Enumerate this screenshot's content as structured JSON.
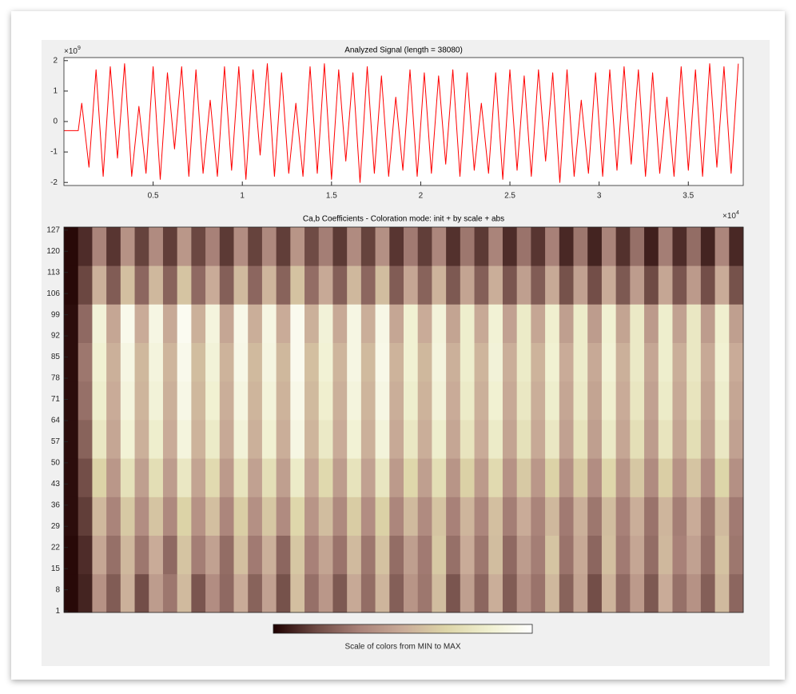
{
  "chart_data": [
    {
      "type": "line",
      "title": "Analyzed Signal (length = 38080)",
      "y_exponent": {
        "base": "×10",
        "power": "9"
      },
      "x_exponent": {
        "base": "×10",
        "power": "4"
      },
      "color": "#ff0000",
      "x": [
        0,
        0.08,
        0.1,
        0.14,
        0.18,
        0.22,
        0.26,
        0.3,
        0.34,
        0.38,
        0.42,
        0.46,
        0.5,
        0.54,
        0.58,
        0.62,
        0.66,
        0.7,
        0.74,
        0.78,
        0.82,
        0.86,
        0.9,
        0.94,
        0.98,
        1.02,
        1.06,
        1.1,
        1.14,
        1.18,
        1.22,
        1.26,
        1.3,
        1.34,
        1.38,
        1.42,
        1.46,
        1.5,
        1.54,
        1.58,
        1.62,
        1.66,
        1.7,
        1.74,
        1.78,
        1.82,
        1.86,
        1.9,
        1.94,
        1.98,
        2.02,
        2.06,
        2.1,
        2.14,
        2.18,
        2.22,
        2.26,
        2.3,
        2.34,
        2.38,
        2.42,
        2.46,
        2.5,
        2.54,
        2.58,
        2.62,
        2.66,
        2.7,
        2.74,
        2.78,
        2.82,
        2.86,
        2.9,
        2.94,
        2.98,
        3.02,
        3.06,
        3.1,
        3.14,
        3.18,
        3.22,
        3.26,
        3.3,
        3.34,
        3.38,
        3.42,
        3.46,
        3.5,
        3.54,
        3.58,
        3.62,
        3.66,
        3.7,
        3.74,
        3.78
      ],
      "values": [
        -0.3,
        -0.3,
        0.6,
        -1.5,
        1.7,
        -1.8,
        1.8,
        -1.2,
        1.9,
        -1.8,
        0.5,
        -1.7,
        1.8,
        -1.9,
        1.6,
        -0.9,
        1.8,
        -1.8,
        1.7,
        -1.7,
        0.7,
        -1.8,
        1.8,
        -1.6,
        1.8,
        -1.9,
        1.7,
        -1.1,
        1.9,
        -1.8,
        1.6,
        -1.7,
        0.6,
        -1.8,
        1.8,
        -1.7,
        1.9,
        -1.9,
        1.7,
        -1.3,
        1.6,
        -2.0,
        1.8,
        -1.7,
        1.5,
        -1.8,
        0.8,
        -1.6,
        1.7,
        -1.8,
        1.6,
        -1.7,
        1.5,
        -1.4,
        1.7,
        -1.8,
        1.6,
        -1.6,
        0.6,
        -1.7,
        1.6,
        -1.9,
        1.7,
        -1.6,
        1.5,
        -1.8,
        1.7,
        -1.3,
        1.6,
        -2.0,
        1.7,
        -1.8,
        0.7,
        -1.7,
        1.6,
        -1.8,
        1.7,
        -1.6,
        1.8,
        -1.4,
        1.7,
        -1.8,
        1.6,
        -1.7,
        0.8,
        -1.8,
        1.8,
        -1.6,
        1.7,
        -1.8,
        1.9,
        -1.5,
        1.8,
        -1.7,
        1.9
      ],
      "xlim": [
        0,
        3.808
      ],
      "xticks": [
        0.5,
        1,
        1.5,
        2,
        2.5,
        3,
        3.5
      ],
      "ylim": [
        -2.1,
        2.1
      ],
      "yticks": [
        -2,
        -1,
        0,
        1,
        2
      ]
    },
    {
      "type": "heatmap",
      "title": "Ca,b Coefficients - Coloration mode: init + by scale + abs",
      "colorbar_label": "Scale of colors from MIN to MAX",
      "colormap": [
        "#1e0000",
        "#6e4a44",
        "#a98279",
        "#c9ab98",
        "#ddd5a8",
        "#f0f0d0",
        "#ffffff"
      ],
      "zlim": [
        0,
        100
      ],
      "xlim": [
        0,
        3.808
      ],
      "ylim": [
        0.5,
        128
      ],
      "yticks": [
        1,
        8,
        15,
        22,
        29,
        36,
        43,
        50,
        57,
        64,
        71,
        78,
        85,
        92,
        99,
        106,
        113,
        120,
        127
      ],
      "z": [
        [
          2,
          8,
          40,
          22,
          52,
          18,
          44,
          30,
          56,
          20,
          38,
          26,
          50,
          24,
          46,
          19,
          58,
          28,
          42,
          21,
          49,
          27,
          54,
          23,
          41,
          30,
          57,
          20,
          45,
          25,
          51,
          22,
          39,
          29,
          55,
          24,
          47,
          18,
          53,
          26,
          43,
          21,
          50,
          28,
          40,
          23,
          56,
          25
        ],
        [
          2,
          10,
          48,
          28,
          55,
          30,
          50,
          26,
          60,
          32,
          46,
          27,
          58,
          31,
          52,
          25,
          61,
          33,
          47,
          29,
          56,
          30,
          59,
          27,
          45,
          31,
          62,
          28,
          50,
          30,
          57,
          26,
          44,
          32,
          60,
          29,
          49,
          25,
          58,
          31,
          48,
          27,
          55,
          33,
          46,
          28,
          59,
          30
        ],
        [
          3,
          14,
          55,
          34,
          62,
          38,
          60,
          36,
          66,
          40,
          58,
          35,
          64,
          39,
          61,
          37,
          68,
          41,
          57,
          36,
          63,
          38,
          65,
          35,
          56,
          37,
          60,
          33,
          54,
          35,
          58,
          32,
          50,
          34,
          55,
          31,
          52,
          30,
          57,
          33,
          51,
          29,
          54,
          32,
          50,
          30,
          56,
          31
        ],
        [
          3,
          18,
          66,
          42,
          74,
          45,
          72,
          44,
          78,
          47,
          70,
          43,
          76,
          46,
          73,
          45,
          80,
          48,
          69,
          44,
          75,
          46,
          77,
          43,
          68,
          45,
          72,
          41,
          65,
          43,
          70,
          40,
          62,
          42,
          66,
          39,
          63,
          38,
          68,
          41,
          61,
          37,
          64,
          40,
          60,
          38,
          67,
          39
        ],
        [
          3,
          24,
          78,
          48,
          85,
          52,
          82,
          50,
          88,
          53,
          80,
          49,
          86,
          52,
          84,
          51,
          90,
          54,
          79,
          50,
          85,
          52,
          87,
          49,
          78,
          51,
          82,
          48,
          76,
          50,
          80,
          47,
          74,
          49,
          78,
          46,
          75,
          45,
          79,
          48,
          73,
          44,
          76,
          47,
          72,
          45,
          78,
          46
        ],
        [
          3,
          28,
          82,
          50,
          88,
          54,
          86,
          52,
          91,
          55,
          84,
          51,
          89,
          54,
          87,
          53,
          92,
          56,
          83,
          52,
          88,
          54,
          90,
          51,
          82,
          53,
          86,
          50,
          80,
          52,
          84,
          49,
          78,
          51,
          82,
          48,
          79,
          47,
          83,
          50,
          77,
          46,
          80,
          49,
          76,
          47,
          82,
          48
        ],
        [
          3,
          30,
          84,
          52,
          90,
          55,
          88,
          54,
          93,
          57,
          86,
          53,
          91,
          56,
          89,
          55,
          94,
          58,
          85,
          54,
          90,
          56,
          92,
          53,
          84,
          55,
          88,
          52,
          82,
          54,
          86,
          51,
          80,
          53,
          84,
          50,
          81,
          49,
          85,
          52,
          79,
          48,
          82,
          51,
          78,
          49,
          84,
          50
        ],
        [
          3,
          26,
          86,
          48,
          93,
          50,
          90,
          49,
          95,
          52,
          88,
          48,
          92,
          51,
          90,
          50,
          94,
          52,
          86,
          49,
          90,
          51,
          91,
          48,
          84,
          50,
          87,
          47,
          82,
          49,
          85,
          46,
          80,
          48,
          83,
          45,
          81,
          44,
          84,
          47,
          79,
          43,
          82,
          46,
          78,
          44,
          83,
          45
        ],
        [
          2,
          16,
          52,
          22,
          58,
          25,
          55,
          24,
          60,
          26,
          50,
          23,
          56,
          25,
          54,
          24,
          59,
          27,
          49,
          23,
          55,
          25,
          57,
          22,
          48,
          24,
          53,
          21,
          47,
          23,
          51,
          20,
          45,
          22,
          49,
          19,
          46,
          18,
          50,
          21,
          44,
          17,
          48,
          20,
          43,
          18,
          50,
          19
        ],
        [
          2,
          10,
          34,
          12,
          40,
          15,
          37,
          14,
          42,
          16,
          33,
          13,
          38,
          15,
          36,
          14,
          41,
          17,
          32,
          13,
          37,
          15,
          39,
          12,
          31,
          14,
          35,
          11,
          30,
          13,
          34,
          10,
          29,
          12,
          33,
          9,
          30,
          8,
          34,
          11,
          28,
          7,
          32,
          10,
          27,
          8,
          35,
          9
        ]
      ]
    }
  ]
}
